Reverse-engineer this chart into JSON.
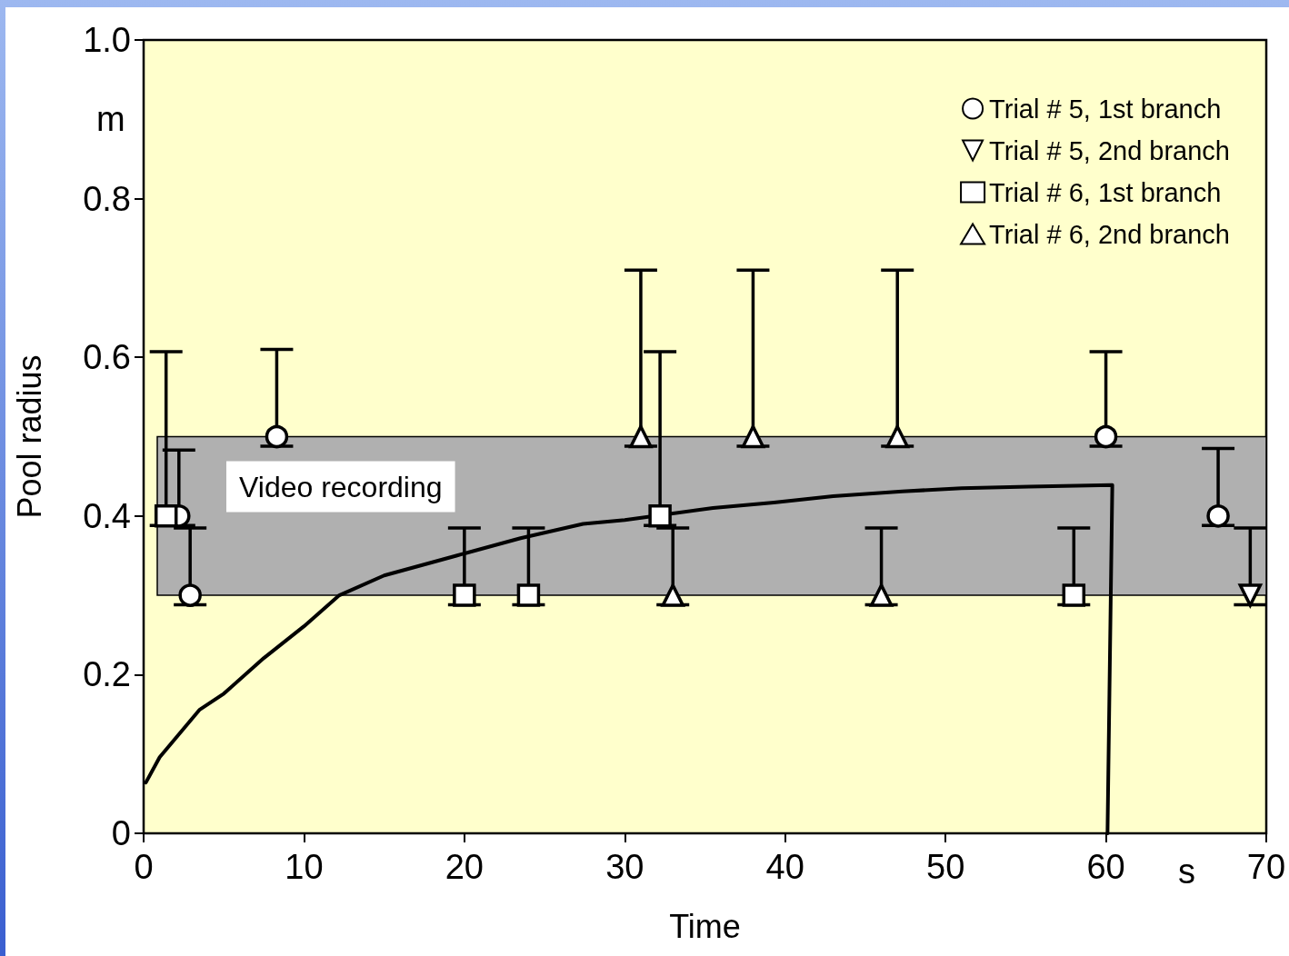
{
  "chart_data": {
    "type": "scatter",
    "xlabel": "Time",
    "ylabel": "Pool radius",
    "annotations": [
      "m",
      "s"
    ],
    "xlim": [
      0,
      70
    ],
    "xticks": [
      0,
      10,
      20,
      30,
      40,
      50,
      60,
      70
    ],
    "ylim": [
      0,
      1
    ],
    "yticks": [
      0,
      0.2,
      0.4,
      0.6,
      0.8,
      {
        "value": 1,
        "label": "1.0"
      }
    ],
    "grid": false,
    "legend": "top right",
    "bands": [
      {
        "axis": "y",
        "from": 0.3,
        "to": 0.5,
        "label": "Video recording",
        "color": "#b0b0b0"
      }
    ],
    "series": [
      {
        "name": "Trial # 5, 1st branch",
        "color": "#000000",
        "marker": "circle",
        "x": [
          2.2,
          2.9,
          8.3,
          60,
          67
        ],
        "values": [
          0.4,
          0.3,
          0.5,
          0.5,
          0.4
        ],
        "errors": [
          [
            0.388,
            0.483
          ],
          [
            0.288,
            0.385
          ],
          [
            0.488,
            0.61
          ],
          [
            0.488,
            0.607
          ],
          [
            0.388,
            0.485
          ]
        ]
      },
      {
        "name": "Trial # 5, 2nd branch",
        "color": "#000000",
        "marker": "triangle-down",
        "x": [
          69
        ],
        "values": [
          0.3
        ],
        "errors": [
          [
            0.288,
            0.385
          ]
        ]
      },
      {
        "name": "Trial # 6, 1st branch",
        "color": "#000000",
        "marker": "square",
        "x": [
          1.4,
          20,
          24,
          32.2,
          58
        ],
        "values": [
          0.4,
          0.3,
          0.3,
          0.4,
          0.3
        ],
        "errors": [
          [
            0.388,
            0.607
          ],
          [
            0.288,
            0.385
          ],
          [
            0.288,
            0.385
          ],
          [
            0.388,
            0.607
          ],
          [
            0.288,
            0.385
          ]
        ]
      },
      {
        "name": "Trial # 6, 2nd branch",
        "color": "#000000",
        "marker": "triangle",
        "x": [
          31,
          33,
          38,
          46,
          47
        ],
        "values": [
          0.5,
          0.3,
          0.5,
          0.3,
          0.5
        ],
        "errors": [
          [
            0.488,
            0.71
          ],
          [
            0.288,
            0.385
          ],
          [
            0.488,
            0.71
          ],
          [
            0.288,
            0.385
          ],
          [
            0.488,
            0.71
          ]
        ]
      },
      {
        "type": "line",
        "color": "#000000",
        "marker": "none",
        "line_style": "solid",
        "x": [
          0.14,
          1,
          2,
          3.5,
          5,
          7.5,
          10,
          12.2,
          15,
          19.5,
          23.5,
          27.4,
          30,
          35.5,
          39.3,
          43,
          47.3,
          51,
          55.2,
          60.4,
          60.1
        ],
        "values": [
          0.064,
          0.096,
          0.12,
          0.156,
          0.176,
          0.221,
          0.261,
          0.3,
          0.325,
          0.35,
          0.372,
          0.39,
          0.395,
          0.41,
          0.417,
          0.425,
          0.431,
          0.435,
          0.437,
          0.439,
          0
        ]
      }
    ]
  }
}
